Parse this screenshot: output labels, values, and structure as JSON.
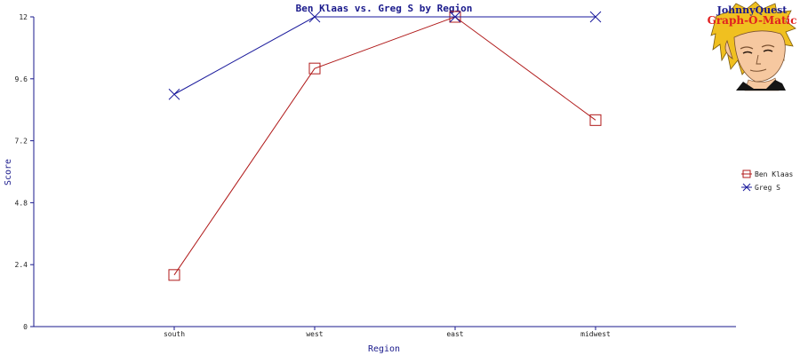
{
  "chart_data": {
    "type": "line",
    "title": "Ben Klaas vs. Greg S by Region",
    "xlabel": "Region",
    "ylabel": "Score",
    "categories": [
      "south",
      "west",
      "east",
      "midwest"
    ],
    "ylim": [
      0,
      12
    ],
    "yticks": [
      "0",
      "2.4",
      "4.8",
      "7.2",
      "9.6",
      "12"
    ],
    "grid": false,
    "legend_position": "right",
    "series": [
      {
        "name": "Ben Klaas",
        "values": [
          2,
          10,
          12,
          8
        ],
        "color": "#b01a1a",
        "marker": "square"
      },
      {
        "name": "Greg S",
        "values": [
          9,
          12,
          12,
          12
        ],
        "color": "#1a1a9c",
        "marker": "x"
      }
    ]
  },
  "logo": {
    "line1": "JohnnyQuest",
    "line2": "Graph-O-Matic",
    "icon": "cartoon-boy-face"
  },
  "colors": {
    "axis": "#1a1a8c",
    "title": "#1a1a8c"
  }
}
